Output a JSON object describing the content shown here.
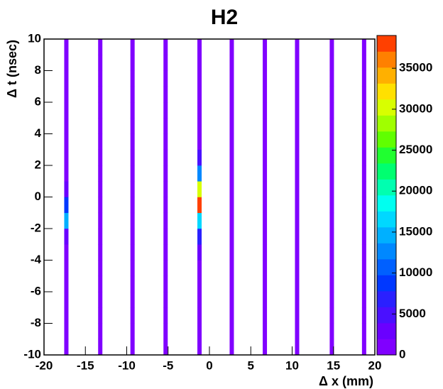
{
  "chart_data": {
    "type": "heatmap",
    "title": "H2",
    "x_label": "Δ x (mm)",
    "y_label": "Δ t (nsec)",
    "xlim": [
      -20,
      20
    ],
    "ylim": [
      -10,
      10
    ],
    "xticks": [
      -20,
      -15,
      -10,
      -5,
      0,
      5,
      10,
      15,
      20
    ],
    "yticks": [
      -10,
      -8,
      -6,
      -4,
      -2,
      0,
      2,
      4,
      6,
      8,
      10
    ],
    "zlim": [
      0,
      39000
    ],
    "zticks": [
      0,
      5000,
      10000,
      15000,
      20000,
      25000,
      30000,
      35000
    ],
    "palette": [
      "#8000ff",
      "#6a00ff",
      "#4a10ff",
      "#2a20ff",
      "#0038ff",
      "#0060ff",
      "#0088ff",
      "#00b0ff",
      "#00d8ff",
      "#00fff0",
      "#00ffb0",
      "#00ff70",
      "#20ff30",
      "#60ff00",
      "#a0ff00",
      "#d8ff00",
      "#ffe000",
      "#ffb000",
      "#ff8000",
      "#ff4000"
    ],
    "x": [
      -17.3,
      -13.2,
      -9.3,
      -5.3,
      -1.2,
      2.7,
      6.7,
      10.6,
      14.8,
      18.7
    ],
    "ybins": [
      -10,
      -9,
      -8,
      -7,
      -6,
      -5,
      -4,
      -3,
      -2,
      -1,
      0,
      1,
      2,
      3,
      4,
      5,
      6,
      7,
      8,
      9,
      10
    ],
    "values": [
      [
        400,
        400,
        400,
        400,
        400,
        400,
        400,
        2000,
        14000,
        9000,
        2500,
        400,
        400,
        400,
        400,
        400,
        400,
        400,
        400,
        400
      ],
      [
        400,
        400,
        400,
        400,
        400,
        400,
        400,
        400,
        400,
        400,
        400,
        400,
        400,
        400,
        400,
        400,
        400,
        400,
        400,
        400
      ],
      [
        400,
        400,
        400,
        400,
        400,
        400,
        400,
        400,
        400,
        400,
        400,
        400,
        400,
        400,
        400,
        400,
        400,
        400,
        400,
        400
      ],
      [
        400,
        400,
        400,
        400,
        400,
        400,
        400,
        400,
        400,
        400,
        400,
        400,
        400,
        400,
        400,
        400,
        400,
        400,
        400,
        400
      ],
      [
        400,
        400,
        400,
        400,
        400,
        400,
        2000,
        6000,
        16000,
        38000,
        30000,
        12000,
        4000,
        400,
        400,
        400,
        400,
        400,
        400,
        400
      ],
      [
        400,
        400,
        400,
        400,
        400,
        400,
        400,
        400,
        400,
        400,
        400,
        400,
        400,
        400,
        400,
        400,
        400,
        400,
        400,
        400
      ],
      [
        400,
        400,
        400,
        400,
        400,
        400,
        400,
        400,
        400,
        400,
        400,
        400,
        400,
        400,
        400,
        400,
        400,
        400,
        400,
        400
      ],
      [
        400,
        400,
        400,
        400,
        400,
        400,
        400,
        400,
        400,
        400,
        400,
        400,
        400,
        400,
        400,
        400,
        400,
        400,
        400,
        400
      ],
      [
        400,
        400,
        400,
        400,
        400,
        400,
        400,
        400,
        400,
        400,
        400,
        400,
        400,
        400,
        400,
        400,
        400,
        400,
        400,
        400
      ],
      [
        400,
        400,
        400,
        400,
        400,
        400,
        400,
        400,
        400,
        400,
        400,
        400,
        400,
        400,
        400,
        400,
        400,
        400,
        400,
        400
      ]
    ]
  }
}
